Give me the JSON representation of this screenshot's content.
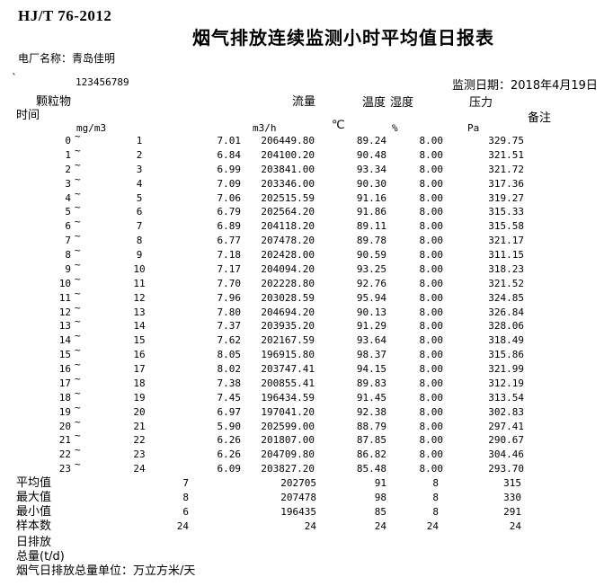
{
  "page": {
    "standard_code": "HJ/T 76-2012",
    "title": "烟气排放连续监测小时平均值日报表",
    "plant_label": "电厂名称：",
    "plant_value": "青岛佳明",
    "corner_mark": "`",
    "serial_number": "123456789",
    "date_label": "监测日期：",
    "date_value": "2018年4月19日"
  },
  "columns": {
    "time": "时间",
    "particulate": "颗粒物",
    "flow": "流量",
    "temperature": "温度",
    "humidity": "湿度",
    "pressure": "压力",
    "remark": "备注",
    "tilde": "~"
  },
  "units": {
    "particulate": "mg/m3",
    "flow": "m3/h",
    "temperature": "℃",
    "humidity": "%",
    "pressure": "Pa"
  },
  "rows": [
    {
      "from": "0",
      "to": "1",
      "pm": "7.01",
      "flow": "206449.80",
      "temp": "89.24",
      "hum": "8.00",
      "pres": "329.75"
    },
    {
      "from": "1",
      "to": "2",
      "pm": "6.84",
      "flow": "204100.20",
      "temp": "90.48",
      "hum": "8.00",
      "pres": "321.51"
    },
    {
      "from": "2",
      "to": "3",
      "pm": "6.99",
      "flow": "203841.00",
      "temp": "93.34",
      "hum": "8.00",
      "pres": "321.72"
    },
    {
      "from": "3",
      "to": "4",
      "pm": "7.09",
      "flow": "203346.00",
      "temp": "90.30",
      "hum": "8.00",
      "pres": "317.36"
    },
    {
      "from": "4",
      "to": "5",
      "pm": "7.06",
      "flow": "202515.59",
      "temp": "91.16",
      "hum": "8.00",
      "pres": "319.27"
    },
    {
      "from": "5",
      "to": "6",
      "pm": "6.79",
      "flow": "202564.20",
      "temp": "91.86",
      "hum": "8.00",
      "pres": "315.33"
    },
    {
      "from": "6",
      "to": "7",
      "pm": "6.89",
      "flow": "204118.20",
      "temp": "89.11",
      "hum": "8.00",
      "pres": "315.58"
    },
    {
      "from": "7",
      "to": "8",
      "pm": "6.77",
      "flow": "207478.20",
      "temp": "89.78",
      "hum": "8.00",
      "pres": "321.17"
    },
    {
      "from": "8",
      "to": "9",
      "pm": "7.18",
      "flow": "202428.00",
      "temp": "90.59",
      "hum": "8.00",
      "pres": "311.15"
    },
    {
      "from": "9",
      "to": "10",
      "pm": "7.17",
      "flow": "204094.20",
      "temp": "93.25",
      "hum": "8.00",
      "pres": "318.23"
    },
    {
      "from": "10",
      "to": "11",
      "pm": "7.70",
      "flow": "202228.80",
      "temp": "92.76",
      "hum": "8.00",
      "pres": "321.52"
    },
    {
      "from": "11",
      "to": "12",
      "pm": "7.96",
      "flow": "203028.59",
      "temp": "95.94",
      "hum": "8.00",
      "pres": "324.85"
    },
    {
      "from": "12",
      "to": "13",
      "pm": "7.80",
      "flow": "204694.20",
      "temp": "90.13",
      "hum": "8.00",
      "pres": "326.84"
    },
    {
      "from": "13",
      "to": "14",
      "pm": "7.37",
      "flow": "203935.20",
      "temp": "91.29",
      "hum": "8.00",
      "pres": "328.06"
    },
    {
      "from": "14",
      "to": "15",
      "pm": "7.62",
      "flow": "202167.59",
      "temp": "93.64",
      "hum": "8.00",
      "pres": "318.49"
    },
    {
      "from": "15",
      "to": "16",
      "pm": "8.05",
      "flow": "196915.80",
      "temp": "98.37",
      "hum": "8.00",
      "pres": "315.86"
    },
    {
      "from": "16",
      "to": "17",
      "pm": "8.02",
      "flow": "203747.41",
      "temp": "94.15",
      "hum": "8.00",
      "pres": "321.99"
    },
    {
      "from": "17",
      "to": "18",
      "pm": "7.38",
      "flow": "200855.41",
      "temp": "89.83",
      "hum": "8.00",
      "pres": "312.19"
    },
    {
      "from": "18",
      "to": "19",
      "pm": "7.45",
      "flow": "196434.59",
      "temp": "91.45",
      "hum": "8.00",
      "pres": "313.54"
    },
    {
      "from": "19",
      "to": "20",
      "pm": "6.97",
      "flow": "197041.20",
      "temp": "92.38",
      "hum": "8.00",
      "pres": "302.83"
    },
    {
      "from": "20",
      "to": "21",
      "pm": "5.90",
      "flow": "202599.00",
      "temp": "88.79",
      "hum": "8.00",
      "pres": "297.41"
    },
    {
      "from": "21",
      "to": "22",
      "pm": "6.26",
      "flow": "201807.00",
      "temp": "87.85",
      "hum": "8.00",
      "pres": "290.67"
    },
    {
      "from": "22",
      "to": "23",
      "pm": "6.26",
      "flow": "204709.80",
      "temp": "86.82",
      "hum": "8.00",
      "pres": "304.46"
    },
    {
      "from": "23",
      "to": "24",
      "pm": "6.09",
      "flow": "203827.20",
      "temp": "85.48",
      "hum": "8.00",
      "pres": "293.70"
    }
  ],
  "summary": [
    {
      "label": "平均值",
      "pm": "7",
      "flow": "202705",
      "temp": "91",
      "hum": "8",
      "pres": "315"
    },
    {
      "label": "最大值",
      "pm": "8",
      "flow": "207478",
      "temp": "98",
      "hum": "8",
      "pres": "330"
    },
    {
      "label": "最小值",
      "pm": "6",
      "flow": "196435",
      "temp": "85",
      "hum": "8",
      "pres": "291"
    },
    {
      "label": "样本数",
      "pm": "24",
      "flow": "24",
      "temp": "24",
      "hum": "24",
      "pres": "24"
    }
  ],
  "footer": {
    "line1": "日排放",
    "line2": "总量(t/d)",
    "line3": "烟气日排放总量单位：万立方米/天"
  }
}
